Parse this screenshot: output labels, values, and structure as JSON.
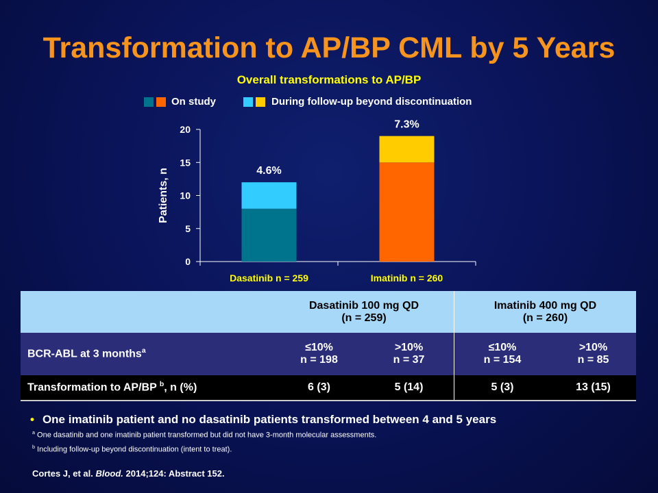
{
  "slide": {
    "title": "Transformation to AP/BP CML by 5 Years"
  },
  "chart_data": {
    "type": "bar",
    "stacked": true,
    "title": "Overall transformations to AP/BP",
    "ylabel": "Patients, n",
    "ylim": [
      0,
      20
    ],
    "yticks": [
      0,
      5,
      10,
      15,
      20
    ],
    "categories": [
      "Dasatinib n = 259",
      "Imatinib n = 260"
    ],
    "series": [
      {
        "name": "On study",
        "values": [
          8,
          15
        ],
        "colors": [
          "#00748c",
          "#ff6600"
        ]
      },
      {
        "name": "During follow-up beyond discontinuation",
        "values": [
          4,
          4
        ],
        "colors": [
          "#33ccff",
          "#ffcc00"
        ]
      }
    ],
    "data_labels": [
      "4.6%",
      "7.3%"
    ],
    "legend": {
      "position": "top",
      "entries": [
        {
          "label": "On study",
          "colors": [
            "#00748c",
            "#ff6600"
          ]
        },
        {
          "label": "During follow-up beyond discontinuation",
          "colors": [
            "#33ccff",
            "#ffcc00"
          ]
        }
      ]
    },
    "category_label_color": "#ffff00"
  },
  "table": {
    "header": {
      "dasatinib": "Dasatinib 100 mg QD",
      "dasatinib_n": "(n = 259)",
      "imatinib": "Imatinib 400 mg QD",
      "imatinib_n": "(n = 260)"
    },
    "bcr_row": {
      "label": "BCR-ABL at 3 months",
      "label_sup": "a",
      "cells": [
        {
          "top": "≤10%",
          "bottom": "n = 198"
        },
        {
          "top": ">10%",
          "bottom": "n = 37"
        },
        {
          "top": "≤10%",
          "bottom": "n = 154"
        },
        {
          "top": ">10%",
          "bottom": "n = 85"
        }
      ]
    },
    "transform_row": {
      "label_pre": "Transformation to AP/BP ",
      "label_sup": "b",
      "label_post": ", n (%)",
      "cells": [
        "6 (3)",
        "5 (14)",
        "5 (3)",
        "13 (15)"
      ]
    }
  },
  "bullet": "One imatinib patient and no dasatinib patients transformed between 4 and 5 years",
  "footnotes": [
    {
      "mark": "a",
      "text": " One dasatinib and one imatinib patient transformed  but did not have 3-month molecular assessments."
    },
    {
      "mark": "b",
      "text": " Including follow-up  beyond discontinuation (intent to treat)."
    }
  ],
  "citation": {
    "pre": "Cortes J, et al. ",
    "journal": "Blood.",
    "post": " 2014;124: Abstract 152."
  }
}
